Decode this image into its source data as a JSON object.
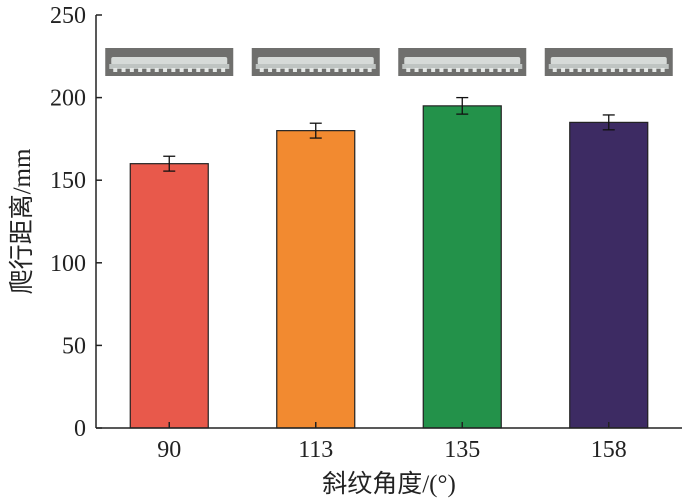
{
  "chart_data": {
    "type": "bar",
    "categories": [
      "90",
      "113",
      "135",
      "158"
    ],
    "values": [
      160,
      180,
      195,
      185
    ],
    "errors": [
      4.5,
      4.5,
      5,
      4.5
    ],
    "colors": [
      "#e8594b",
      "#f28a30",
      "#23924a",
      "#3d2b63"
    ],
    "xlabel": "斜纹角度/(°)",
    "ylabel": "爬行距离/mm",
    "ylim": [
      0,
      250
    ],
    "yticks": [
      0,
      50,
      100,
      150,
      200,
      250
    ],
    "grid": false,
    "legend": "none",
    "inset_images": [
      "sample-90",
      "sample-113",
      "sample-135",
      "sample-158"
    ]
  }
}
